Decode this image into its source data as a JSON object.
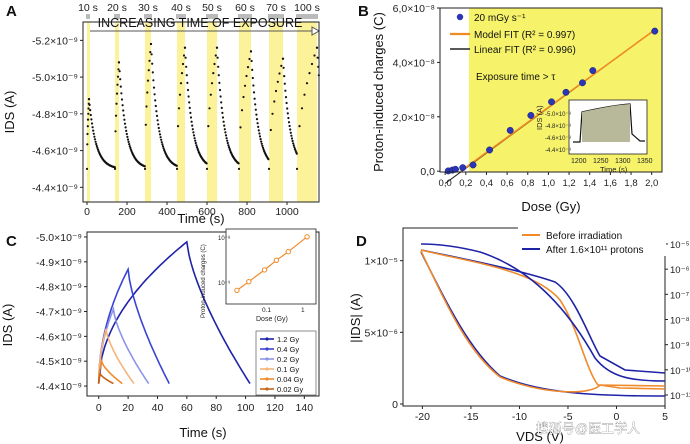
{
  "panels": {
    "A": "A",
    "B": "B",
    "C": "C",
    "D": "D"
  },
  "watermark": "搜狐号@医工学人",
  "chart_data": [
    {
      "id": "A",
      "type": "line",
      "annotation": "INCREASING TIME OF EXPOSURE",
      "exposure_labels": [
        "10 s",
        "20 s",
        "30 s",
        "40 s",
        "50 s",
        "60 s",
        "70 s",
        "100 s"
      ],
      "xlabel": "Time (s)",
      "ylabel": "IDS (A)",
      "xlim": [
        -20,
        1160
      ],
      "ylim": [
        -5.3e-09,
        -4.32e-09
      ],
      "xticks": [
        0,
        200,
        400,
        600,
        800,
        1000
      ],
      "xtick_labels": [
        "0",
        "200",
        "400",
        "600",
        "800",
        "1000"
      ],
      "yticks": [
        -5.2e-09,
        -5e-09,
        -4.8e-09,
        -4.6e-09,
        -4.4e-09
      ],
      "ytick_labels": [
        "-5.2×10⁻⁹",
        "-5.0×10⁻⁹",
        "-4.8×10⁻⁹",
        "-4.6×10⁻⁹",
        "-4.4×10⁻⁹"
      ],
      "colors": {
        "data": "#111111",
        "exposure": "#fbf29a"
      },
      "exposures": [
        {
          "start": 0,
          "end": 10,
          "min": -4.88e-09
        },
        {
          "start": 140,
          "end": 160,
          "min": -5.08e-09
        },
        {
          "start": 290,
          "end": 320,
          "min": -5.18e-09
        },
        {
          "start": 450,
          "end": 490,
          "min": -5.16e-09
        },
        {
          "start": 600,
          "end": 650,
          "min": -5.16e-09
        },
        {
          "start": 760,
          "end": 820,
          "min": -5.14e-09
        },
        {
          "start": 910,
          "end": 980,
          "min": -5.1e-09
        },
        {
          "start": 1050,
          "end": 1150,
          "min": -5.16e-09
        }
      ]
    },
    {
      "id": "B",
      "type": "scatter",
      "xlabel": "Dose (Gy)",
      "ylabel": "Proton-induced charges (C)",
      "xlim": [
        -0.05,
        2.1
      ],
      "ylim": [
        -3e-10,
        6e-08
      ],
      "xticks": [
        0,
        0.2,
        0.4,
        0.6,
        0.8,
        1.0,
        1.2,
        1.4,
        1.6,
        1.8,
        2.0
      ],
      "xtick_labels": [
        "0,0",
        "0,2",
        "0,4",
        "0,6",
        "0,8",
        "1,0",
        "1,2",
        "1,4",
        "1,6",
        "1,8",
        "2,0"
      ],
      "yticks": [
        0,
        2e-08,
        4e-08,
        6e-08
      ],
      "ytick_labels": [
        "0,0",
        "2,0×10⁻⁸",
        "4,0×10⁻⁸",
        "6,0×10⁻⁸"
      ],
      "highlight": {
        "from": 0.23,
        "to": 2.1,
        "color": "#f6f36a"
      },
      "highlight_label": "Exposure time > τ",
      "x": [
        0.03,
        0.07,
        0.1,
        0.17,
        0.27,
        0.43,
        0.63,
        0.83,
        1.03,
        1.17,
        1.33,
        1.43,
        2.03
      ],
      "y": [
        1e-10,
        4e-10,
        7e-10,
        1.3e-09,
        2.3e-09,
        7.8e-09,
        1.5e-08,
        2.05e-08,
        2.55e-08,
        2.9e-08,
        3.25e-08,
        3.7e-08,
        5.15e-08
      ],
      "legend": [
        {
          "label": "20 mGy s⁻¹",
          "kind": "marker",
          "color": "#2a35b8"
        },
        {
          "label": "Model FIT (R² = 0.997)",
          "kind": "line",
          "color": "#f28a22"
        },
        {
          "label": "Linear FIT (R² = 0.996)",
          "kind": "line",
          "color": "#222222"
        }
      ],
      "fit_line": {
        "x": [
          0.0,
          2.05
        ],
        "y": [
          -4.5e-09,
          5.25e-08
        ]
      },
      "inset": {
        "xlabel": "Time (s)",
        "ylabel": "IDS (A)",
        "xticks": [
          1200,
          1250,
          1300,
          1350
        ],
        "xtick_labels": [
          "1200",
          "1250",
          "1300",
          "1350"
        ],
        "ytick_labels": [
          "-5.0×10⁻⁹",
          "-4.8×10⁻⁹",
          "-4.6×10⁻⁹",
          "-4.4×10⁻⁹"
        ]
      }
    },
    {
      "id": "C",
      "type": "line",
      "xlabel": "Time (s)",
      "ylabel": "IDS (A)",
      "xlim": [
        -8,
        150
      ],
      "ylim": [
        -5.02e-09,
        -4.36e-09
      ],
      "xticks": [
        0,
        20,
        40,
        60,
        80,
        100,
        120,
        140
      ],
      "xtick_labels": [
        "0",
        "20",
        "40",
        "60",
        "80",
        "100",
        "120",
        "140"
      ],
      "yticks": [
        -5e-09,
        -4.9e-09,
        -4.8e-09,
        -4.7e-09,
        -4.6e-09,
        -4.5e-09,
        -4.4e-09
      ],
      "ytick_labels": [
        "-5.0×10⁻⁹",
        "-4.9×10⁻⁹",
        "-4.8×10⁻⁹",
        "-4.7×10⁻⁹",
        "-4.6×10⁻⁹",
        "-4.5×10⁻⁹",
        "-4.4×10⁻⁹"
      ],
      "series": [
        {
          "name": "1.2 Gy",
          "color": "#1e23a8",
          "t_end": 60,
          "peak": -4.98e-09,
          "decay_end": 103
        },
        {
          "name": "0.4 Gy",
          "color": "#3a44d4",
          "t_end": 20,
          "peak": -4.87e-09,
          "decay_end": 48
        },
        {
          "name": "0.2 Gy",
          "color": "#8d95e8",
          "t_end": 10,
          "peak": -4.71e-09,
          "decay_end": 34
        },
        {
          "name": "0.1 Gy",
          "color": "#f5b47a",
          "t_end": 5,
          "peak": -4.63e-09,
          "decay_end": 24
        },
        {
          "name": "0.04 Gy",
          "color": "#f08a2a",
          "t_end": 2,
          "peak": -4.5e-09,
          "decay_end": 16
        },
        {
          "name": "0.02 Gy",
          "color": "#c8641a",
          "t_end": 1,
          "peak": -4.45e-09,
          "decay_end": 10
        }
      ],
      "inset": {
        "xlabel": "Dose (Gy)",
        "ylabel": "Proton-induced charges (C)",
        "xtick_labels": [
          "0.1",
          "1"
        ],
        "ytick_labels": [
          "10⁻⁹",
          "10⁻⁸"
        ],
        "x": [
          0.02,
          0.04,
          0.1,
          0.2,
          0.4,
          1.2
        ],
        "y": [
          8e-10,
          1.5e-09,
          3.5e-09,
          7e-09,
          1.3e-08,
          3.8e-08
        ]
      }
    },
    {
      "id": "D",
      "type": "line",
      "xlabel": "VDS (V)",
      "ylabel": "|IDS| (A)",
      "xlim": [
        -22,
        5
      ],
      "xticks": [
        -20,
        -15,
        -10,
        -5,
        0,
        5
      ],
      "xtick_labels": [
        "-20",
        "-15",
        "-10",
        "-5",
        "0",
        "5"
      ],
      "yticks_left": [
        0,
        5e-06,
        1e-05
      ],
      "ytick_labels_left": [
        "0",
        "5×10⁻⁶",
        "1×10⁻⁵"
      ],
      "ytick_labels_right": [
        "10⁻⁵",
        "10⁻⁶",
        "10⁻⁷",
        "10⁻⁸",
        "10⁻⁹",
        "10⁻¹⁰",
        "10⁻¹¹"
      ],
      "series": [
        {
          "name": "Before irradiation",
          "color": "#f08a2a"
        },
        {
          "name": "After 1.6×10¹¹ protons",
          "color": "#1e23a8"
        }
      ]
    }
  ]
}
